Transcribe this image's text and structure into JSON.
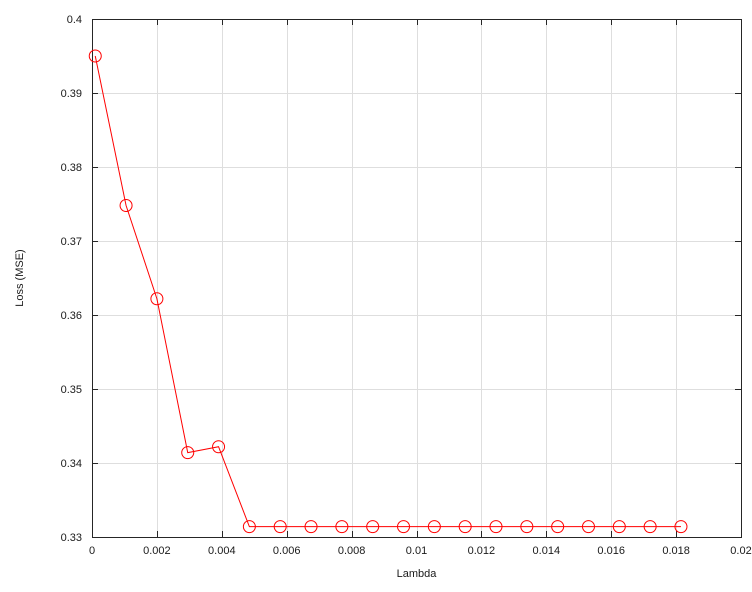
{
  "chart_data": {
    "type": "line",
    "title": "",
    "xlabel": "Lambda",
    "ylabel": "Loss (MSE)",
    "xlim": [
      0,
      0.02
    ],
    "ylim": [
      0.33,
      0.4
    ],
    "grid": true,
    "legend": "none",
    "x_ticks": [
      0,
      0.002,
      0.004,
      0.006,
      0.008,
      0.01,
      0.012,
      0.014,
      0.016,
      0.018,
      0.02
    ],
    "x_tick_labels": [
      "0",
      "0.002",
      "0.004",
      "0.006",
      "0.008",
      "0.01",
      "0.012",
      "0.014",
      "0.016",
      "0.018",
      "0.02"
    ],
    "y_ticks": [
      0.33,
      0.34,
      0.35,
      0.36,
      0.37,
      0.38,
      0.39,
      0.4
    ],
    "y_tick_labels": [
      "0.33",
      "0.34",
      "0.35",
      "0.36",
      "0.37",
      "0.38",
      "0.39",
      "0.4"
    ],
    "series": [
      {
        "color": "#ff0000",
        "marker": "circle",
        "x": [
          0.0001,
          0.00105,
          0.002,
          0.00295,
          0.0039,
          0.00485,
          0.0058,
          0.00675,
          0.0077,
          0.00865,
          0.0096,
          0.01055,
          0.0115,
          0.01245,
          0.0134,
          0.01435,
          0.0153,
          0.01625,
          0.0172,
          0.01815
        ],
        "y": [
          0.395,
          0.3748,
          0.3622,
          0.3414,
          0.3422,
          0.3314,
          0.3314,
          0.3314,
          0.3314,
          0.3314,
          0.3314,
          0.3314,
          0.3314,
          0.3314,
          0.3314,
          0.3314,
          0.3314,
          0.3314,
          0.3314,
          0.3314
        ]
      }
    ]
  }
}
